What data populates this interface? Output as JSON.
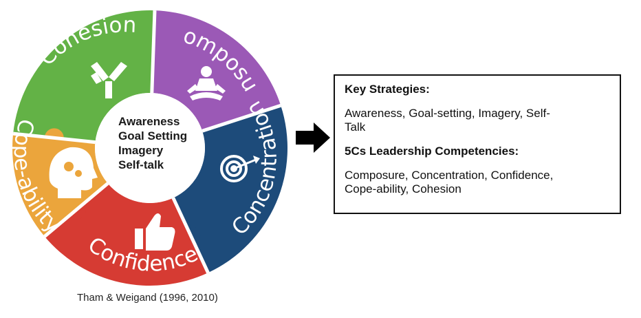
{
  "segments": [
    {
      "key": "cohesion",
      "label": "Cohesion",
      "color": "#63b246"
    },
    {
      "key": "composure",
      "label": "Composure",
      "color": "#9b59b6"
    },
    {
      "key": "concentration",
      "label": "Concentration",
      "color": "#1d4b7a"
    },
    {
      "key": "confidence",
      "label": "Confidence",
      "color": "#d63b33"
    },
    {
      "key": "cope",
      "label": "Cope-ability",
      "color": "#eba53c"
    }
  ],
  "center_lines": [
    "Awareness",
    "Goal Setting",
    "Imagery",
    "Self-talk"
  ],
  "citation": "Tham & Weigand (1996, 2010)",
  "box": {
    "strategies_heading": "Key Strategies:",
    "strategies_line1": "Awareness, Goal-setting, Imagery, Self-",
    "strategies_line2": "Talk",
    "competencies_heading": "5Cs Leadership Competencies:",
    "competencies_line1": "Composure, Concentration, Confidence,",
    "competencies_line2": "Cope-ability, Cohesion"
  }
}
